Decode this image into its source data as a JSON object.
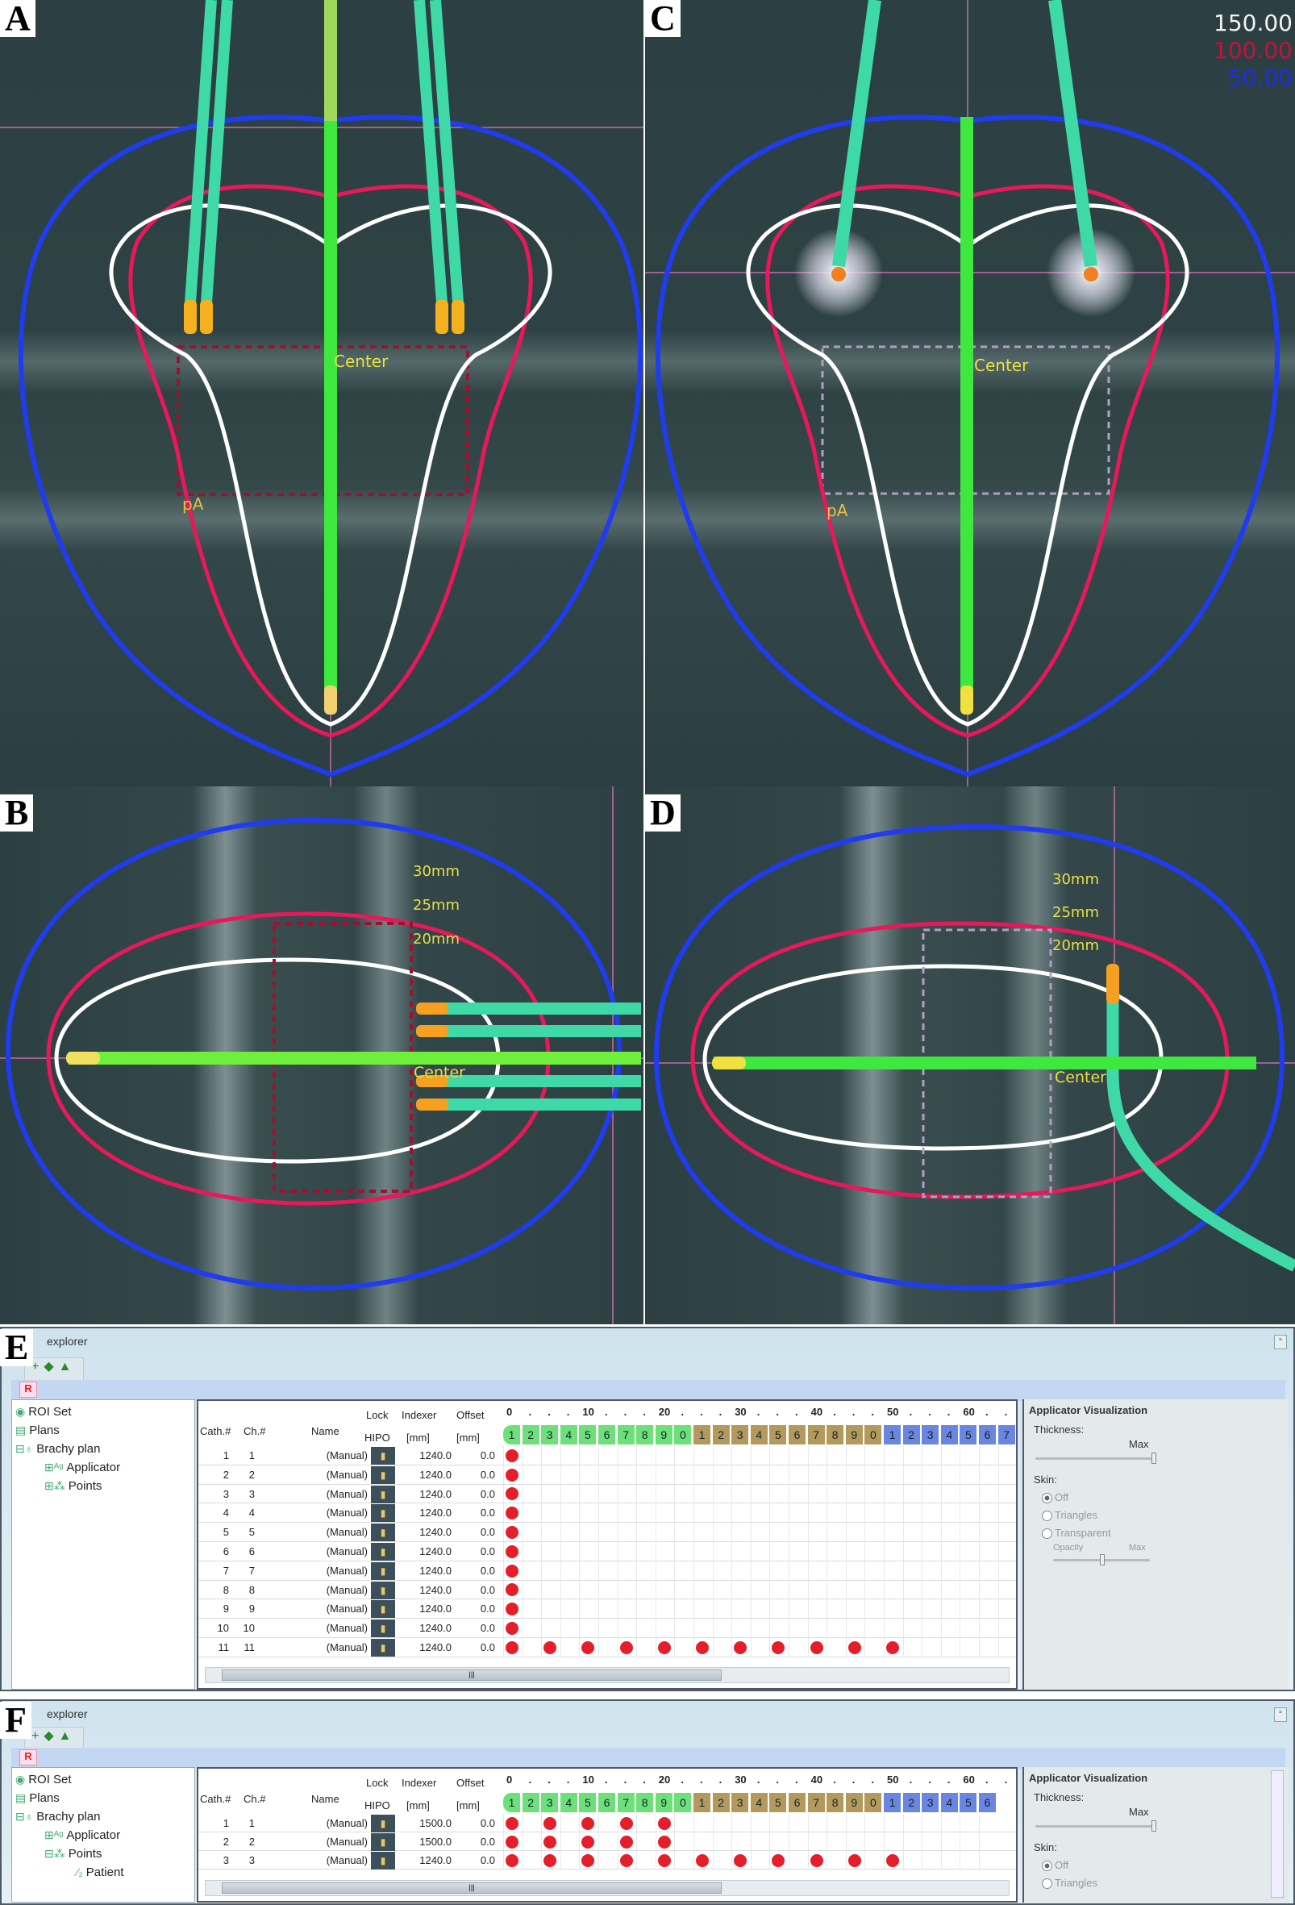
{
  "panels": {
    "a": "A",
    "b": "B",
    "c": "C",
    "d": "D",
    "e": "E",
    "f": "F"
  },
  "isodose_legend": [
    {
      "value": "150.00",
      "color": "#f2f2f2"
    },
    {
      "value": "100.00",
      "color": "#c8103a"
    },
    {
      "value": "50.00",
      "color": "#1a2ee8"
    }
  ],
  "colors": {
    "blue_isodose": "#1f3cf0",
    "red_isodose": "#e8185a",
    "white_isodose": "#ffffff",
    "catheter": "#3fd9a8",
    "central_tube": "#3fe83f",
    "tip": "#f5a623",
    "background": "#2c4043"
  },
  "image_labels": {
    "center": "Center",
    "point_a": "pA",
    "dist_30": "30mm",
    "dist_25": "25mm",
    "dist_20": "20mm"
  },
  "explorer_e": {
    "title": "explorer",
    "red_button": "R",
    "tree": [
      {
        "label": "ROI Set",
        "icon": "roi-set-icon"
      },
      {
        "label": "Plans",
        "icon": "plans-icon"
      },
      {
        "label": "Brachy plan",
        "icon": "brachy-plan-icon"
      },
      {
        "label": "Applicator",
        "icon": "applicator-icon"
      },
      {
        "label": "Points",
        "icon": "points-icon"
      }
    ],
    "headers": {
      "cath": "Cath.#",
      "ch": "Ch.#",
      "name": "Name",
      "lock": "Lock",
      "hipo": "HIPO",
      "indexer": "Indexer",
      "indexer_unit": "[mm]",
      "offset": "Offset",
      "offset_unit": "[mm]"
    },
    "ruler": [
      "0",
      "10",
      "20",
      "30",
      "40",
      "50",
      "60"
    ],
    "cells": [
      "1",
      "2",
      "3",
      "4",
      "5",
      "6",
      "7",
      "8",
      "9",
      "0",
      "1",
      "2",
      "3",
      "4",
      "5",
      "6",
      "7",
      "8",
      "9",
      "0",
      "1",
      "2",
      "3",
      "4",
      "5",
      "6",
      "7"
    ],
    "rows": [
      {
        "cath": "1",
        "ch": "1",
        "name": "(Manual)",
        "indexer": "1240.0",
        "offset": "0.0",
        "dwells": [
          1
        ]
      },
      {
        "cath": "2",
        "ch": "2",
        "name": "(Manual)",
        "indexer": "1240.0",
        "offset": "0.0",
        "dwells": [
          1
        ]
      },
      {
        "cath": "3",
        "ch": "3",
        "name": "(Manual)",
        "indexer": "1240.0",
        "offset": "0.0",
        "dwells": [
          1
        ]
      },
      {
        "cath": "4",
        "ch": "4",
        "name": "(Manual)",
        "indexer": "1240.0",
        "offset": "0.0",
        "dwells": [
          1
        ]
      },
      {
        "cath": "5",
        "ch": "5",
        "name": "(Manual)",
        "indexer": "1240.0",
        "offset": "0.0",
        "dwells": [
          1
        ]
      },
      {
        "cath": "6",
        "ch": "6",
        "name": "(Manual)",
        "indexer": "1240.0",
        "offset": "0.0",
        "dwells": [
          1
        ]
      },
      {
        "cath": "7",
        "ch": "7",
        "name": "(Manual)",
        "indexer": "1240.0",
        "offset": "0.0",
        "dwells": [
          1
        ]
      },
      {
        "cath": "8",
        "ch": "8",
        "name": "(Manual)",
        "indexer": "1240.0",
        "offset": "0.0",
        "dwells": [
          1
        ]
      },
      {
        "cath": "9",
        "ch": "9",
        "name": "(Manual)",
        "indexer": "1240.0",
        "offset": "0.0",
        "dwells": [
          1
        ]
      },
      {
        "cath": "10",
        "ch": "10",
        "name": "(Manual)",
        "indexer": "1240.0",
        "offset": "0.0",
        "dwells": [
          1
        ]
      },
      {
        "cath": "11",
        "ch": "11",
        "name": "(Manual)",
        "indexer": "1240.0",
        "offset": "0.0",
        "dwells": [
          1,
          3,
          5,
          7,
          9,
          11,
          13,
          15,
          17,
          19,
          21
        ]
      }
    ],
    "right_panel": {
      "title": "Applicator Visualization",
      "thickness": "Thickness:",
      "thickness_max": "Max",
      "thickness_level": 1.0,
      "skin": "Skin:",
      "options": [
        "Off",
        "Triangles",
        "Transparent"
      ],
      "selected": "Off",
      "opacity": "Opacity",
      "opacity_max": "Max",
      "opacity_level": 0.5
    }
  },
  "explorer_f": {
    "title": "explorer",
    "red_button": "R",
    "tree": [
      {
        "label": "ROI Set",
        "icon": "roi-set-icon"
      },
      {
        "label": "Plans",
        "icon": "plans-icon"
      },
      {
        "label": "Brachy plan",
        "icon": "brachy-plan-icon"
      },
      {
        "label": "Applicator",
        "icon": "applicator-icon"
      },
      {
        "label": "Points",
        "icon": "points-icon"
      },
      {
        "label": "Patient",
        "icon": "patient-point-icon"
      }
    ],
    "headers": {
      "cath": "Cath.#",
      "ch": "Ch.#",
      "name": "Name",
      "lock": "Lock",
      "hipo": "HIPO",
      "indexer": "Indexer",
      "indexer_unit": "[mm]",
      "offset": "Offset",
      "offset_unit": "[mm]"
    },
    "ruler": [
      "0",
      "10",
      "20",
      "30",
      "40",
      "50",
      "60"
    ],
    "cells": [
      "1",
      "2",
      "3",
      "4",
      "5",
      "6",
      "7",
      "8",
      "9",
      "0",
      "1",
      "2",
      "3",
      "4",
      "5",
      "6",
      "7",
      "8",
      "9",
      "0",
      "1",
      "2",
      "3",
      "4",
      "5",
      "6"
    ],
    "rows": [
      {
        "cath": "1",
        "ch": "1",
        "name": "(Manual)",
        "indexer": "1500.0",
        "offset": "0.0",
        "dwells": [
          1,
          3,
          5,
          7,
          9
        ]
      },
      {
        "cath": "2",
        "ch": "2",
        "name": "(Manual)",
        "indexer": "1500.0",
        "offset": "0.0",
        "dwells": [
          1,
          3,
          5,
          7,
          9
        ]
      },
      {
        "cath": "3",
        "ch": "3",
        "name": "(Manual)",
        "indexer": "1240.0",
        "offset": "0.0",
        "dwells": [
          1,
          3,
          5,
          7,
          9,
          11,
          13,
          15,
          17,
          19,
          21
        ]
      }
    ],
    "right_panel": {
      "title": "Applicator Visualization",
      "thickness": "Thickness:",
      "thickness_max": "Max",
      "thickness_level": 1.0,
      "skin": "Skin:",
      "options": [
        "Off",
        "Triangles"
      ],
      "selected": "Off"
    }
  }
}
